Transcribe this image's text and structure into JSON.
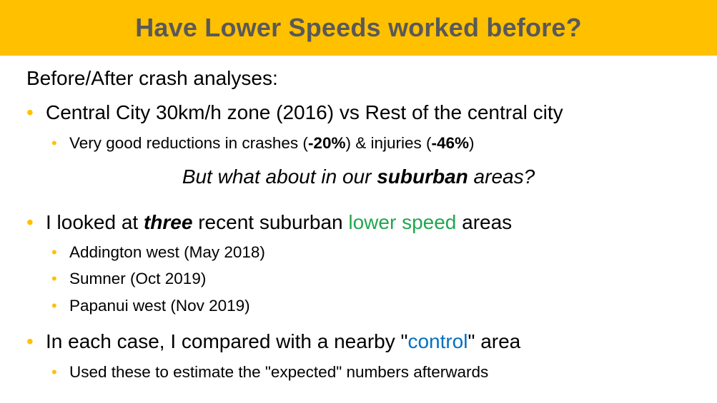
{
  "title": "Have Lower Speeds worked before?",
  "intro": "Before/After crash analyses:",
  "section1": {
    "bullet": "Central City 30km/h zone (2016) vs Rest of the central city",
    "sub": {
      "p1": "Very good reductions in crashes (",
      "crashes_pct": "-20%",
      "p2": ") & injuries (",
      "injuries_pct": "-46%",
      "p3": ")"
    }
  },
  "question": {
    "p1": "But what about in our ",
    "bold": "suburban",
    "p2": " areas?"
  },
  "section2": {
    "p1": "I looked at ",
    "bold": "three",
    "p2": " recent suburban ",
    "highlight": "lower speed",
    "p3": " areas",
    "items": [
      "Addington west (May 2018)",
      "Sumner (Oct 2019)",
      "Papanui west (Nov 2019)"
    ]
  },
  "section3": {
    "p1": "In each case, I compared with a nearby \"",
    "highlight": "control",
    "p2": "\" area",
    "sub": "Used these to estimate the \"expected\" numbers afterwards"
  },
  "colors": {
    "title_bar": "#FFC000",
    "title_text": "#595959",
    "bullet": "#FFC000",
    "green_highlight": "#22A650",
    "blue_highlight": "#0070C0"
  }
}
